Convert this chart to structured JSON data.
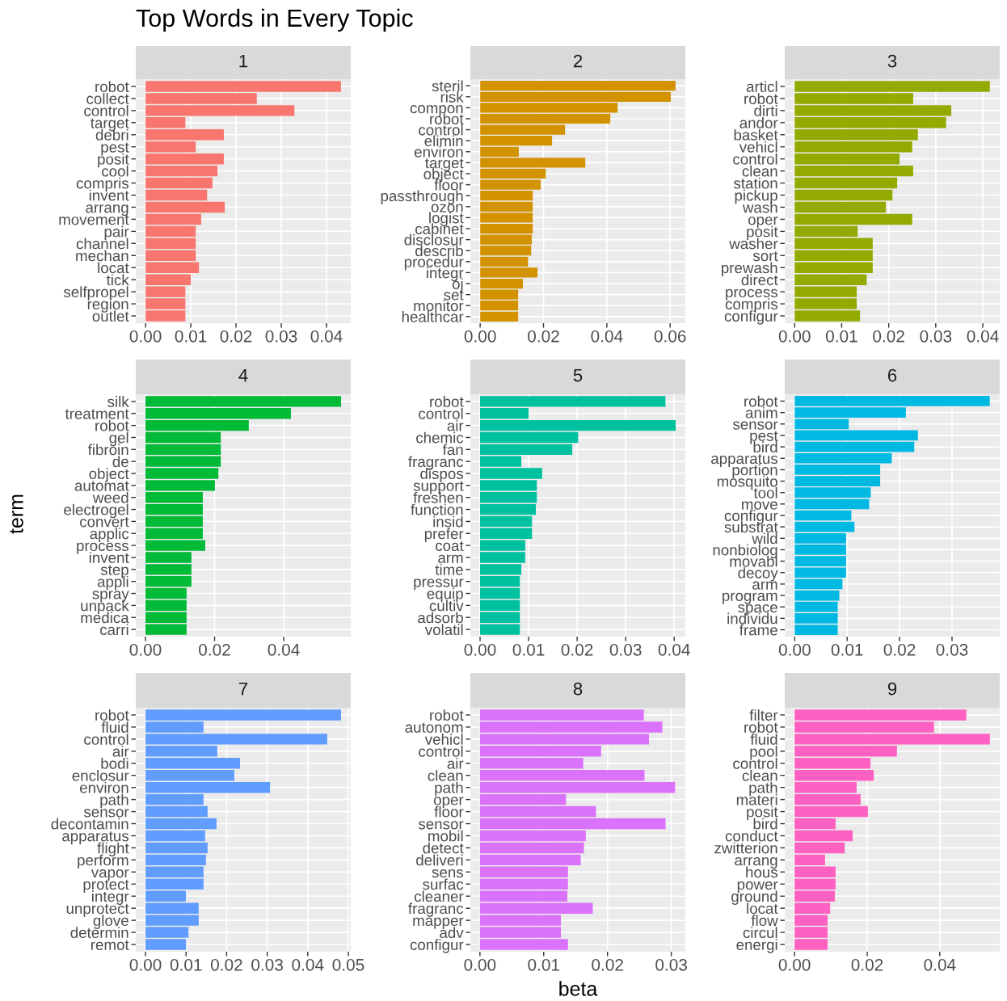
{
  "chart_data": [
    {
      "type": "bar",
      "orientation": "horizontal",
      "title": "1",
      "annotations": [
        "Top Words in Every Topic"
      ],
      "grid": true,
      "color": "#f8766d",
      "xlim": [
        -0.00216,
        0.04536
      ],
      "xticks": [
        {
          "value": 0,
          "label": "0.00"
        },
        {
          "value": 0.01,
          "label": "0.01"
        },
        {
          "value": 0.02,
          "label": "0.02"
        },
        {
          "value": 0.03,
          "label": "0.03"
        },
        {
          "value": 0.04,
          "label": "0.04"
        }
      ],
      "categories": [
        "robot",
        "collect",
        "control",
        "target",
        "debri",
        "pest",
        "posit",
        "cool",
        "compris",
        "invent",
        "arrang",
        "movement",
        "pair",
        "channel",
        "mechan",
        "locat",
        "tick",
        "selfpropel",
        "region",
        "outlet"
      ],
      "values": [
        0.0432,
        0.0246,
        0.0329,
        0.0088,
        0.0173,
        0.0111,
        0.0173,
        0.0159,
        0.0148,
        0.0136,
        0.0175,
        0.0123,
        0.0111,
        0.0111,
        0.0111,
        0.0118,
        0.01,
        0.0088,
        0.0088,
        0.0088
      ]
    },
    {
      "type": "bar",
      "orientation": "horizontal",
      "title": "2",
      "grid": true,
      "color": "#d39200",
      "xlim": [
        -0.0031,
        0.0648
      ],
      "xticks": [
        {
          "value": 0,
          "label": "0.00"
        },
        {
          "value": 0.02,
          "label": "0.02"
        },
        {
          "value": 0.04,
          "label": "0.04"
        },
        {
          "value": 0.06,
          "label": "0.06"
        }
      ],
      "categories": [
        "steril",
        "risk",
        "compon",
        "robot",
        "control",
        "elimin",
        "environ",
        "target",
        "object",
        "floor",
        "passthrough",
        "ozon",
        "logist",
        "cabinet",
        "disclosur",
        "describ",
        "procedur",
        "integr",
        "oj",
        "set",
        "monitor",
        "healthcar"
      ],
      "values": [
        0.0617,
        0.0602,
        0.0434,
        0.0411,
        0.0268,
        0.0227,
        0.0122,
        0.0332,
        0.0207,
        0.0191,
        0.0166,
        0.0166,
        0.0166,
        0.0166,
        0.0163,
        0.0161,
        0.0151,
        0.0181,
        0.0135,
        0.012,
        0.012,
        0.012
      ]
    },
    {
      "type": "bar",
      "orientation": "horizontal",
      "title": "3",
      "grid": true,
      "color": "#93aa00",
      "xlim": [
        -0.0021,
        0.0436
      ],
      "xticks": [
        {
          "value": 0,
          "label": "0.00"
        },
        {
          "value": 0.01,
          "label": "0.01"
        },
        {
          "value": 0.02,
          "label": "0.02"
        },
        {
          "value": 0.03,
          "label": "0.03"
        },
        {
          "value": 0.04,
          "label": "0.04"
        }
      ],
      "categories": [
        "articl",
        "robot",
        "dirti",
        "andor",
        "basket",
        "vehicl",
        "control",
        "clean",
        "station",
        "pickup",
        "wash",
        "oper",
        "posit",
        "washer",
        "sort",
        "prewash",
        "direct",
        "process",
        "compris",
        "configur"
      ],
      "values": [
        0.0415,
        0.0252,
        0.0333,
        0.0322,
        0.0262,
        0.025,
        0.0223,
        0.0252,
        0.0218,
        0.0208,
        0.0194,
        0.025,
        0.0134,
        0.0166,
        0.0166,
        0.0166,
        0.0153,
        0.0132,
        0.0132,
        0.0139
      ]
    },
    {
      "type": "bar",
      "orientation": "horizontal",
      "title": "4",
      "ylabel": "term",
      "grid": true,
      "color": "#00ba38",
      "xlim": [
        -0.0028,
        0.0594
      ],
      "xticks": [
        {
          "value": 0,
          "label": "0.00"
        },
        {
          "value": 0.02,
          "label": "0.02"
        },
        {
          "value": 0.04,
          "label": "0.04"
        }
      ],
      "categories": [
        "silk",
        "treatment",
        "robot",
        "gel",
        "fibroin",
        "de",
        "object",
        "automat",
        "weed",
        "electrogel",
        "convert",
        "applic",
        "process",
        "invent",
        "step",
        "appli",
        "spray",
        "unpack",
        "medica",
        "carri"
      ],
      "values": [
        0.0566,
        0.0421,
        0.0299,
        0.0218,
        0.0218,
        0.0218,
        0.0211,
        0.0201,
        0.0166,
        0.0166,
        0.0166,
        0.0166,
        0.0173,
        0.0133,
        0.0133,
        0.0133,
        0.0119,
        0.0119,
        0.0119,
        0.0119
      ]
    },
    {
      "type": "bar",
      "orientation": "horizontal",
      "title": "5",
      "grid": true,
      "color": "#00c19f",
      "xlim": [
        -0.002,
        0.0423
      ],
      "xticks": [
        {
          "value": 0,
          "label": "0.00"
        },
        {
          "value": 0.01,
          "label": "0.01"
        },
        {
          "value": 0.02,
          "label": "0.02"
        },
        {
          "value": 0.03,
          "label": "0.03"
        },
        {
          "value": 0.04,
          "label": "0.04"
        }
      ],
      "categories": [
        "robot",
        "control",
        "air",
        "chemic",
        "fan",
        "fragranc",
        "dispos",
        "support",
        "freshen",
        "function",
        "insid",
        "prefer",
        "coat",
        "arm",
        "time",
        "pressur",
        "equip",
        "cultiv",
        "adsorb",
        "volatil"
      ],
      "values": [
        0.0382,
        0.01,
        0.0403,
        0.0202,
        0.019,
        0.0085,
        0.0128,
        0.0117,
        0.0117,
        0.0115,
        0.0107,
        0.0107,
        0.0093,
        0.0093,
        0.0085,
        0.0082,
        0.0082,
        0.0082,
        0.0082,
        0.0082
      ]
    },
    {
      "type": "bar",
      "orientation": "horizontal",
      "title": "6",
      "grid": true,
      "color": "#00b9e3",
      "xlim": [
        -0.0019,
        0.0391
      ],
      "xticks": [
        {
          "value": 0,
          "label": "0.00"
        },
        {
          "value": 0.01,
          "label": "0.01"
        },
        {
          "value": 0.02,
          "label": "0.02"
        },
        {
          "value": 0.03,
          "label": "0.03"
        }
      ],
      "categories": [
        "robot",
        "anim",
        "sensor",
        "pest",
        "bird",
        "apparatus",
        "portion",
        "mosquito",
        "tool",
        "move",
        "configur",
        "substrat",
        "wild",
        "nonbiolog",
        "movabl",
        "decoy",
        "arm",
        "program",
        "space",
        "individu",
        "frame"
      ],
      "values": [
        0.0372,
        0.0212,
        0.0103,
        0.0235,
        0.0228,
        0.0185,
        0.0163,
        0.0163,
        0.0145,
        0.0142,
        0.0108,
        0.0114,
        0.0098,
        0.0098,
        0.0098,
        0.0098,
        0.0091,
        0.0085,
        0.0082,
        0.0082,
        0.0082
      ]
    },
    {
      "type": "bar",
      "orientation": "horizontal",
      "title": "7",
      "grid": true,
      "color": "#619cff",
      "xlim": [
        -0.0024,
        0.0506
      ],
      "xticks": [
        {
          "value": 0,
          "label": "0.00"
        },
        {
          "value": 0.01,
          "label": "0.01"
        },
        {
          "value": 0.02,
          "label": "0.02"
        },
        {
          "value": 0.03,
          "label": "0.03"
        },
        {
          "value": 0.04,
          "label": "0.04"
        },
        {
          "value": 0.05,
          "label": "0.05"
        }
      ],
      "categories": [
        "robot",
        "fluid",
        "control",
        "air",
        "bodi",
        "enclosur",
        "environ",
        "path",
        "sensor",
        "decontamin",
        "apparatus",
        "flight",
        "perform",
        "vapor",
        "protect",
        "integr",
        "unprotect",
        "glove",
        "determin",
        "remot"
      ],
      "values": [
        0.0482,
        0.0143,
        0.0448,
        0.0177,
        0.0233,
        0.0219,
        0.0307,
        0.0143,
        0.0153,
        0.0175,
        0.0147,
        0.0153,
        0.0149,
        0.0143,
        0.0143,
        0.01,
        0.0131,
        0.0131,
        0.0106,
        0.01
      ]
    },
    {
      "type": "bar",
      "orientation": "horizontal",
      "title": "8",
      "xlabel": "beta",
      "grid": true,
      "color": "#db72fb",
      "xlim": [
        -0.0015,
        0.0322
      ],
      "xticks": [
        {
          "value": 0,
          "label": "0.00"
        },
        {
          "value": 0.01,
          "label": "0.01"
        },
        {
          "value": 0.02,
          "label": "0.02"
        },
        {
          "value": 0.03,
          "label": "0.03"
        }
      ],
      "categories": [
        "robot",
        "autonom",
        "vehicl",
        "control",
        "air",
        "clean",
        "path",
        "oper",
        "floor",
        "sensor",
        "mobil",
        "detect",
        "deliveri",
        "sens",
        "surfac",
        "cleaner",
        "fragranc",
        "mapper",
        "adv",
        "configur"
      ],
      "values": [
        0.0257,
        0.0286,
        0.0265,
        0.019,
        0.0162,
        0.0258,
        0.0306,
        0.0135,
        0.0182,
        0.0291,
        0.0166,
        0.0163,
        0.0158,
        0.0138,
        0.0138,
        0.0137,
        0.0177,
        0.0127,
        0.0127,
        0.0138
      ]
    },
    {
      "type": "bar",
      "orientation": "horizontal",
      "title": "9",
      "grid": true,
      "color": "#ff61c3",
      "xlim": [
        -0.0027,
        0.0565
      ],
      "xticks": [
        {
          "value": 0,
          "label": "0.00"
        },
        {
          "value": 0.02,
          "label": "0.02"
        },
        {
          "value": 0.04,
          "label": "0.04"
        }
      ],
      "categories": [
        "filter",
        "robot",
        "fluid",
        "pool",
        "control",
        "clean",
        "path",
        "materi",
        "posit",
        "bird",
        "conduct",
        "zwitterion",
        "arrang",
        "hous",
        "power",
        "ground",
        "locat",
        "flow",
        "circul",
        "energi"
      ],
      "values": [
        0.0473,
        0.0384,
        0.0538,
        0.0282,
        0.0209,
        0.0218,
        0.0171,
        0.0182,
        0.0202,
        0.0113,
        0.016,
        0.0138,
        0.0084,
        0.0113,
        0.0113,
        0.0111,
        0.0098,
        0.0091,
        0.0091,
        0.0091
      ]
    }
  ]
}
